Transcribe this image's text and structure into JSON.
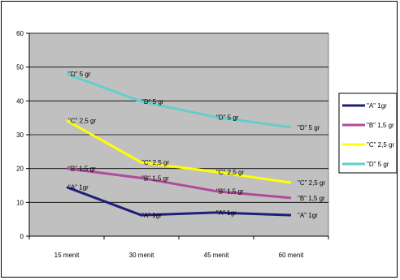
{
  "chart_data": {
    "type": "line",
    "categories": [
      "15 menit",
      "30 menit",
      "45 menit",
      "60 menit"
    ],
    "ylim": [
      0,
      60
    ],
    "yticks": [
      0,
      10,
      20,
      30,
      40,
      50,
      60
    ],
    "grid": true,
    "plot_background": "#c0c0c0",
    "legend_position": "right",
    "series": [
      {
        "name": "\"A\" 1gr",
        "color": "#1f1f7a",
        "values": [
          14.5,
          6.2,
          7.0,
          6.2
        ],
        "label": "\"A\" 1gr"
      },
      {
        "name": "\"B\" 1,5 gr",
        "color": "#b04a9a",
        "values": [
          20.0,
          17.2,
          13.3,
          11.3
        ],
        "label": "\"B\" 1,5 gr"
      },
      {
        "name": "\"C\" 2,5 gr",
        "color": "#ffff00",
        "values": [
          34.2,
          21.8,
          19.0,
          15.8
        ],
        "label": "\"C\" 2,5 gr"
      },
      {
        "name": "\"D\" 5 gr",
        "color": "#66cccc",
        "values": [
          48.0,
          39.8,
          35.2,
          32.2
        ],
        "label": "\"D\" 5 gr"
      }
    ]
  }
}
